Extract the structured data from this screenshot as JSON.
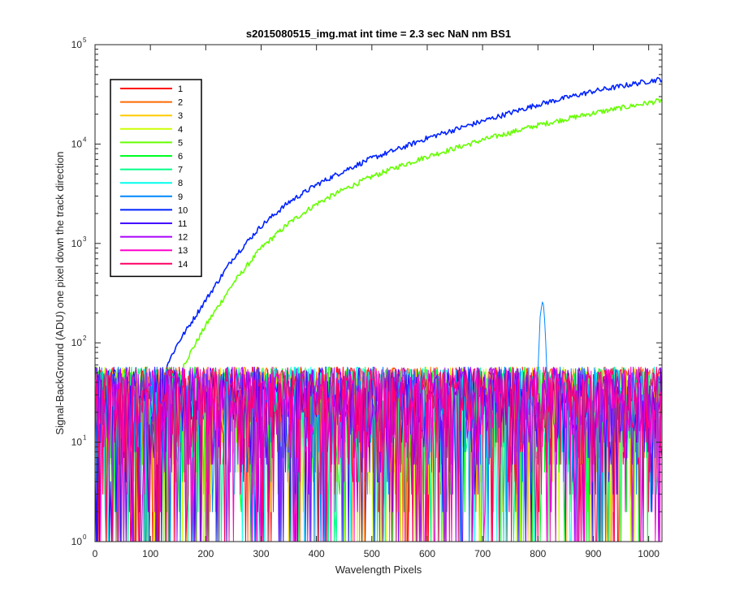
{
  "chart_data": {
    "type": "line",
    "title": "s2015080515_img.mat int time = 2.3 sec  NaN nm BS1",
    "xlabel": "Wavelength Pixels",
    "ylabel": "Signal-BackGround (ADU) one pixel down the track direction",
    "xlim": [
      0,
      1024
    ],
    "ylim": [
      1,
      100000
    ],
    "yscale": "log",
    "x_ticks": [
      0,
      100,
      200,
      300,
      400,
      500,
      600,
      700,
      800,
      900,
      1000
    ],
    "x_tick_labels": [
      "0",
      "100",
      "200",
      "300",
      "400",
      "500",
      "600",
      "700",
      "800",
      "900",
      "1000"
    ],
    "y_ticks": [
      1,
      10,
      100,
      1000,
      10000,
      100000
    ],
    "y_tick_bases": [
      "10",
      "10",
      "10",
      "10",
      "10",
      "10"
    ],
    "y_tick_exponents": [
      "0",
      "1",
      "2",
      "3",
      "4",
      "5"
    ],
    "grid": false,
    "legend_position": "top-left",
    "series": [
      {
        "name": "1",
        "color": "#ff0000",
        "kind": "noise"
      },
      {
        "name": "2",
        "color": "#ff6a00",
        "kind": "noise"
      },
      {
        "name": "3",
        "color": "#ffcc00",
        "kind": "noise"
      },
      {
        "name": "4",
        "color": "#ccff00",
        "kind": "noise"
      },
      {
        "name": "5",
        "color": "#66ff00",
        "kind": "signal",
        "points": [
          [
            160,
            60
          ],
          [
            200,
            150
          ],
          [
            250,
            400
          ],
          [
            300,
            900
          ],
          [
            350,
            1600
          ],
          [
            400,
            2500
          ],
          [
            450,
            3500
          ],
          [
            500,
            4700
          ],
          [
            550,
            6000
          ],
          [
            600,
            7500
          ],
          [
            700,
            11000
          ],
          [
            800,
            15500
          ],
          [
            900,
            20500
          ],
          [
            1000,
            26000
          ],
          [
            1024,
            27500
          ]
        ]
      },
      {
        "name": "6",
        "color": "#00ff22",
        "kind": "noise"
      },
      {
        "name": "7",
        "color": "#00ff88",
        "kind": "noise"
      },
      {
        "name": "8",
        "color": "#00ffee",
        "kind": "noise"
      },
      {
        "name": "9",
        "color": "#0088ff",
        "kind": "noise",
        "peak": {
          "x": 808,
          "y": 260
        }
      },
      {
        "name": "10",
        "color": "#0022ff",
        "kind": "signal",
        "points": [
          [
            130,
            60
          ],
          [
            150,
            100
          ],
          [
            200,
            270
          ],
          [
            250,
            720
          ],
          [
            300,
            1500
          ],
          [
            350,
            2600
          ],
          [
            400,
            3900
          ],
          [
            450,
            5400
          ],
          [
            500,
            7200
          ],
          [
            550,
            9000
          ],
          [
            600,
            11500
          ],
          [
            700,
            17000
          ],
          [
            800,
            25000
          ],
          [
            900,
            34000
          ],
          [
            1000,
            43000
          ],
          [
            1024,
            45000
          ]
        ]
      },
      {
        "name": "11",
        "color": "#4400ff",
        "kind": "noise"
      },
      {
        "name": "12",
        "color": "#aa00ff",
        "kind": "noise"
      },
      {
        "name": "13",
        "color": "#ff00cc",
        "kind": "noise"
      },
      {
        "name": "14",
        "color": "#ff0066",
        "kind": "noise"
      }
    ]
  }
}
